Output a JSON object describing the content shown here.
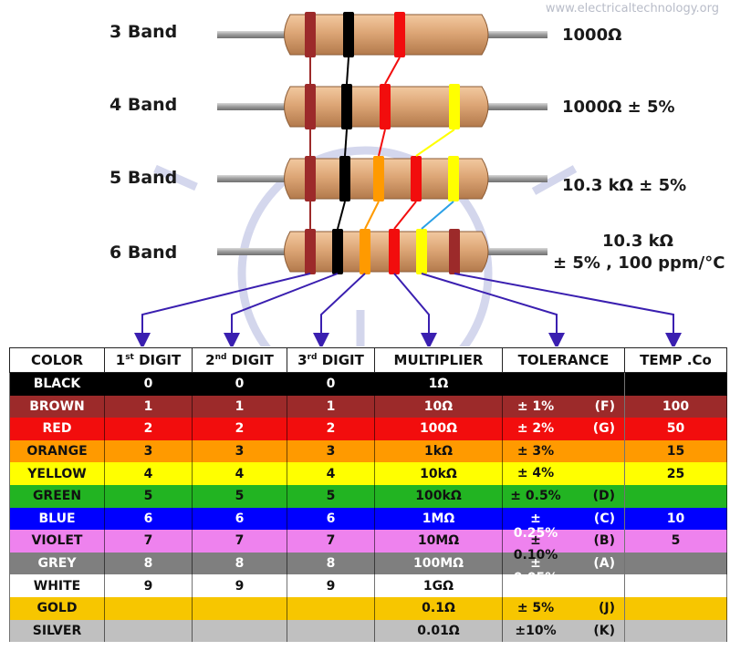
{
  "watermark": "www.electricaltechnology.org",
  "resistors": [
    {
      "label": "3 Band",
      "value_lines": [
        "1000Ω"
      ]
    },
    {
      "label": "4 Band",
      "value_lines": [
        "1000Ω ± 5%"
      ]
    },
    {
      "label": "5 Band",
      "value_lines": [
        "10.3 kΩ ± 5%"
      ]
    },
    {
      "label": "6 Band",
      "value_lines": [
        "10.3 kΩ",
        "± 5% , 100 ppm/°C"
      ]
    }
  ],
  "colors": {
    "body": "#dda676",
    "lead": "#9a9a9a",
    "arrow": "#3a1fb0",
    "connector_tolerance": "#2aa0e6",
    "bulb_outline": "#c9cde8"
  },
  "table": {
    "headers": [
      {
        "main": "COLOR",
        "sup": ""
      },
      {
        "main": "1",
        "sup": "st",
        "rest": " DIGIT"
      },
      {
        "main": "2",
        "sup": "nd",
        "rest": " DIGIT"
      },
      {
        "main": "3",
        "sup": "rd",
        "rest": " DIGIT"
      },
      {
        "main": "MULTIPLIER",
        "sup": ""
      },
      {
        "main": "TOLERANCE",
        "sup": ""
      },
      {
        "main": "TEMP .Co",
        "sup": ""
      }
    ],
    "rows": [
      {
        "name": "BLACK",
        "bg": "#000000",
        "fg": "#ffffff",
        "d1": "0",
        "d2": "0",
        "d3": "0",
        "mult": "1Ω",
        "tol": "",
        "code": "",
        "temp": ""
      },
      {
        "name": "BROWN",
        "bg": "#9c2a2a",
        "fg": "#ffffff",
        "d1": "1",
        "d2": "1",
        "d3": "1",
        "mult": "10Ω",
        "tol": "± 1%",
        "code": "(F)",
        "temp": "100"
      },
      {
        "name": "RED",
        "bg": "#f20d0d",
        "fg": "#ffffff",
        "d1": "2",
        "d2": "2",
        "d3": "2",
        "mult": "100Ω",
        "tol": "± 2%",
        "code": "(G)",
        "temp": "50"
      },
      {
        "name": "ORANGE",
        "bg": "#ff9a00",
        "fg": "#111111",
        "d1": "3",
        "d2": "3",
        "d3": "3",
        "mult": "1kΩ",
        "tol": "± 3%",
        "code": "",
        "temp": "15"
      },
      {
        "name": "YELLOW",
        "bg": "#ffff00",
        "fg": "#111111",
        "d1": "4",
        "d2": "4",
        "d3": "4",
        "mult": "10kΩ",
        "tol": "± 4%",
        "code": "",
        "temp": "25"
      },
      {
        "name": "GREEN",
        "bg": "#22b422",
        "fg": "#111111",
        "d1": "5",
        "d2": "5",
        "d3": "5",
        "mult": "100kΩ",
        "tol": "± 0.5%",
        "code": "(D)",
        "temp": ""
      },
      {
        "name": "BLUE",
        "bg": "#0000ff",
        "fg": "#ffffff",
        "d1": "6",
        "d2": "6",
        "d3": "6",
        "mult": "1MΩ",
        "tol": "± 0.25%",
        "code": "(C)",
        "temp": "10"
      },
      {
        "name": "VIOLET",
        "bg": "#ee82ee",
        "fg": "#111111",
        "d1": "7",
        "d2": "7",
        "d3": "7",
        "mult": "10MΩ",
        "tol": "± 0.10%",
        "code": "(B)",
        "temp": "5"
      },
      {
        "name": "GREY",
        "bg": "#7f7f7f",
        "fg": "#ffffff",
        "d1": "8",
        "d2": "8",
        "d3": "8",
        "mult": "100MΩ",
        "tol": "± 0.05%",
        "code": "(A)",
        "temp": ""
      },
      {
        "name": "WHITE",
        "bg": "#ffffff",
        "fg": "#111111",
        "d1": "9",
        "d2": "9",
        "d3": "9",
        "mult": "1GΩ",
        "tol": "",
        "code": "",
        "temp": ""
      },
      {
        "name": "GOLD",
        "bg": "#f7c600",
        "fg": "#111111",
        "d1": "",
        "d2": "",
        "d3": "",
        "mult": "0.1Ω",
        "tol": "± 5%",
        "code": "(J)",
        "temp": ""
      },
      {
        "name": "SILVER",
        "bg": "#c0c0c0",
        "fg": "#111111",
        "d1": "",
        "d2": "",
        "d3": "",
        "mult": "0.01Ω",
        "tol": "±10%",
        "code": "(K)",
        "temp": ""
      }
    ]
  }
}
